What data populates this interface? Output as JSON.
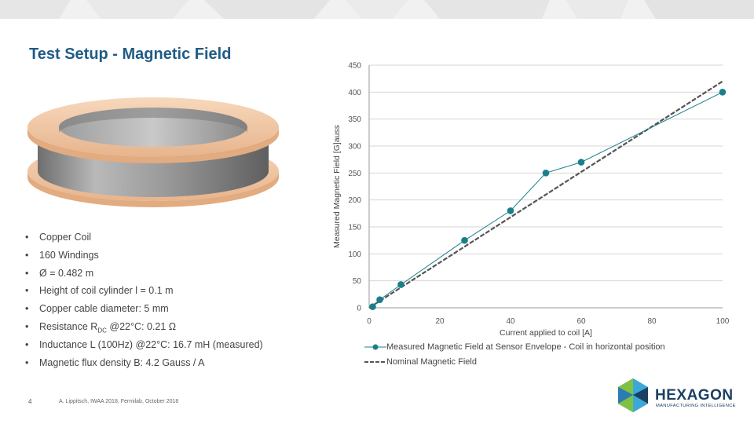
{
  "slide": {
    "title": "Test Setup - Magnetic Field",
    "page_number": "4",
    "footer_note": "A. Lippitsch, IWAA 2018, Fermilab, October 2018"
  },
  "coil_image": {
    "icon": "copper-coil-ring-icon",
    "copper_color": "#f3c9a4",
    "steel_color": "#9c9c9c"
  },
  "specs": [
    {
      "text": "Copper Coil"
    },
    {
      "text": "160 Windings"
    },
    {
      "text": "Ø = 0.482 m"
    },
    {
      "text": "Height of coil cylinder l = 0.1 m"
    },
    {
      "text": "Copper cable diameter: 5 mm"
    },
    {
      "prefix": "Resistance R",
      "sub": "DC",
      "suffix": " @22°C: 0.21 Ω"
    },
    {
      "text": "Inductance L (100Hz) @22°C: 16.7 mH (measured)"
    },
    {
      "text": "Magnetic flux density B: 4.2 Gauss / A"
    }
  ],
  "chart_data": {
    "type": "line",
    "title": "",
    "xlabel": "Current applied to coil [A]",
    "ylabel": "Measured Magnetic Field [G]auss",
    "xlim": [
      0,
      100
    ],
    "ylim": [
      0,
      450
    ],
    "x_ticks": [
      0,
      20,
      40,
      60,
      80,
      100
    ],
    "y_ticks": [
      0,
      50,
      100,
      150,
      200,
      250,
      300,
      350,
      400,
      450
    ],
    "grid": "horizontal",
    "legend_position": "bottom",
    "series": [
      {
        "name": "Measured Magnetic Field at Sensor Envelope - Coil in horizontal position",
        "style": "solid-with-markers",
        "color": "#1a7f8a",
        "points": [
          [
            1,
            2
          ],
          [
            3,
            15
          ],
          [
            9,
            43
          ],
          [
            27,
            125
          ],
          [
            40,
            180
          ],
          [
            50,
            250
          ],
          [
            60,
            270
          ],
          [
            100,
            400
          ]
        ]
      },
      {
        "name": "Nominal Magnetic Field",
        "style": "dashed",
        "color": "#555555",
        "points": [
          [
            0,
            0
          ],
          [
            100,
            420
          ]
        ]
      }
    ]
  },
  "brand": {
    "name": "HEXAGON",
    "tagline": "MANUFACTURING INTELLIGENCE",
    "icon": "hexagon-logo-icon",
    "colors": [
      "#1c3f62",
      "#3aa9d8",
      "#7fc243"
    ]
  }
}
